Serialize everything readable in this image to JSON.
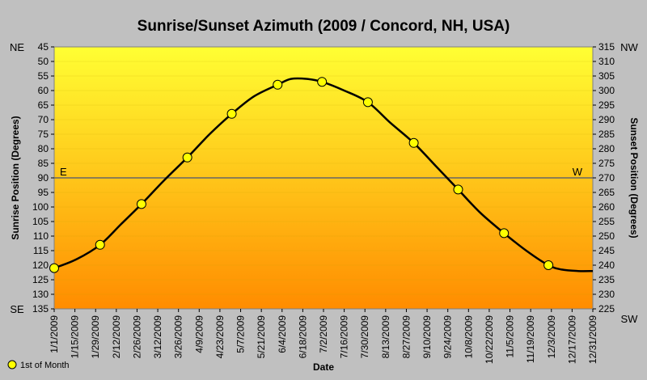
{
  "chart_data": {
    "type": "line",
    "title": "Sunrise/Sunset Azimuth (2009 / Concord, NH, USA)",
    "xlabel": "Date",
    "ylabel": "Sunrise Position (Degrees)",
    "y2label": "Sunset Position (Degrees)",
    "y_left": {
      "min": 45,
      "max": 135,
      "step": 5,
      "inverted": true
    },
    "y_right": {
      "min": 225,
      "max": 315,
      "step": 5
    },
    "corner_labels": {
      "top_left": "NE",
      "bottom_left": "SE",
      "top_right": "NW",
      "bottom_right": "SW"
    },
    "reference_line": {
      "value": 90,
      "left_label": "E",
      "right_label": "W"
    },
    "x_ticks": [
      "1/1/2009",
      "1/15/2009",
      "1/29/2009",
      "2/12/2009",
      "2/26/2009",
      "3/12/2009",
      "3/26/2009",
      "4/9/2009",
      "4/23/2009",
      "5/7/2009",
      "5/21/2009",
      "6/4/2009",
      "6/18/2009",
      "7/2/2009",
      "7/16/2009",
      "7/30/2009",
      "8/13/2009",
      "8/27/2009",
      "9/10/2009",
      "9/24/2009",
      "10/8/2009",
      "10/22/2009",
      "11/5/2009",
      "11/19/2009",
      "12/3/2009",
      "12/17/2009",
      "12/31/2009"
    ],
    "x_range": [
      "2009-01-01",
      "2009-12-31"
    ],
    "series": [
      {
        "name": "1st of Month",
        "marker": "circle",
        "x": [
          "2009-01-01",
          "2009-02-01",
          "2009-03-01",
          "2009-04-01",
          "2009-05-01",
          "2009-06-01",
          "2009-07-01",
          "2009-08-01",
          "2009-09-01",
          "2009-10-01",
          "2009-11-01",
          "2009-12-01"
        ],
        "values": [
          121,
          113,
          99,
          83,
          68,
          58,
          57,
          64,
          78,
          94,
          109,
          120
        ]
      },
      {
        "name": "",
        "marker": "none",
        "x": [
          "2009-01-01",
          "2009-01-16",
          "2009-02-01",
          "2009-02-15",
          "2009-03-01",
          "2009-03-16",
          "2009-04-01",
          "2009-04-16",
          "2009-05-01",
          "2009-05-16",
          "2009-06-01",
          "2009-06-10",
          "2009-06-21",
          "2009-07-01",
          "2009-07-16",
          "2009-08-01",
          "2009-08-16",
          "2009-09-01",
          "2009-09-16",
          "2009-10-01",
          "2009-10-16",
          "2009-11-01",
          "2009-11-16",
          "2009-12-01",
          "2009-12-10",
          "2009-12-21",
          "2009-12-31"
        ],
        "values": [
          121,
          118,
          113,
          106,
          99,
          91,
          83,
          75,
          68,
          62,
          58,
          56,
          56,
          57,
          60,
          64,
          71,
          78,
          86,
          94,
          102,
          109,
          115,
          120,
          121.5,
          122,
          122
        ]
      }
    ],
    "gradient": {
      "top": "#ffff33",
      "bottom": "#ff8c00"
    },
    "line_color": "#000000",
    "marker_fill": "#ffff00",
    "grid": true,
    "legend_position": "bottom-left"
  }
}
